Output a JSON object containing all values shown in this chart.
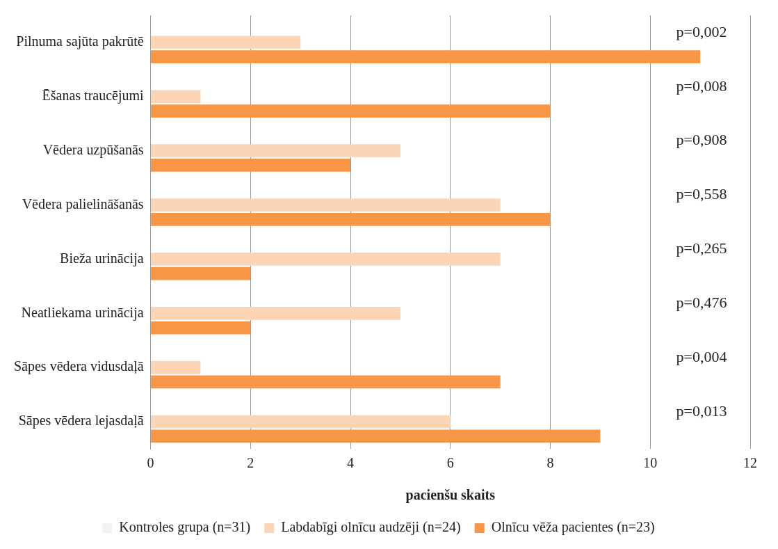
{
  "chart_data": {
    "type": "bar",
    "orientation": "horizontal",
    "xlabel": "pacienšu skaits",
    "categories": [
      "Pilnuma sajūta pakrūtē",
      "Ēšanas traucējumi",
      "Vēdera uzpūšanās",
      "Vēdera palielināšanās",
      "Bieža urinācija",
      "Neatliekama urinācija",
      "Sāpes vēdera vidusdaļā",
      "Sāpes vēdera lejasdaļā"
    ],
    "series": [
      {
        "name": "Kontroles grupa (n=31)",
        "color": "#f2f2f2",
        "values": [
          0,
          0,
          0,
          0,
          0,
          0,
          0,
          0
        ]
      },
      {
        "name": "Labdabīgi olnīcu audzēji (n=24)",
        "color": "#fbd5b5",
        "values": [
          3,
          1,
          5,
          7,
          7,
          5,
          1,
          6
        ]
      },
      {
        "name": "Olnīcu vēža pacientes (n=23)",
        "color": "#f79646",
        "values": [
          11,
          8,
          4,
          8,
          2,
          2,
          7,
          9
        ]
      }
    ],
    "xlim": [
      0,
      12
    ],
    "xticks": [
      0,
      2,
      4,
      6,
      8,
      10,
      12
    ],
    "grid": "x",
    "legend": "bottom",
    "annotations": [
      "p=0,002",
      "p=0,008",
      "p=0,908",
      "p=0,558",
      "p=0,265",
      "p=0,476",
      "p=0,004",
      "p=0,013"
    ]
  }
}
